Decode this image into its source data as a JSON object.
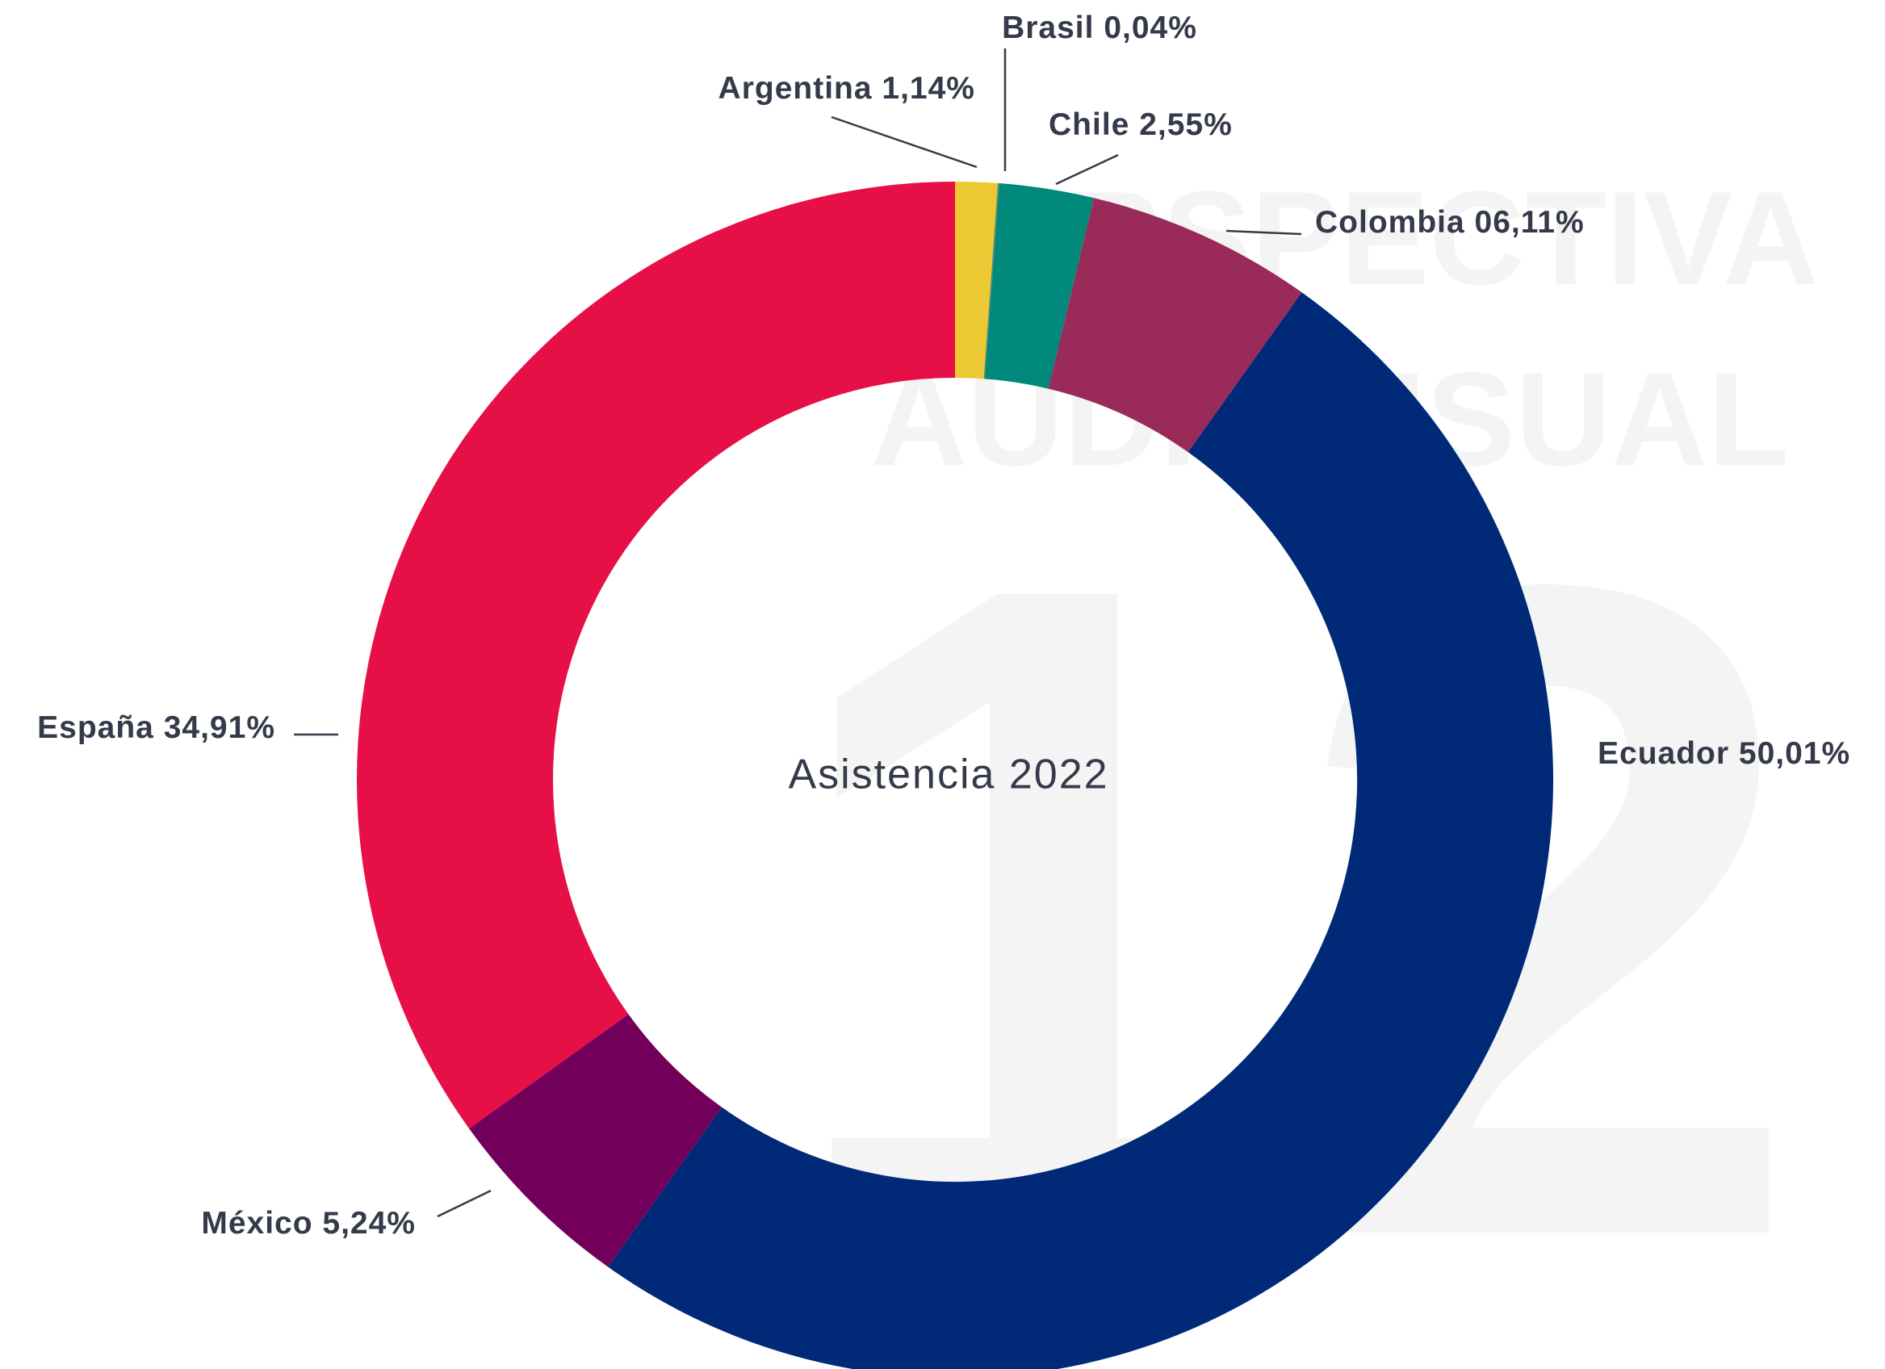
{
  "chart_data": {
    "type": "donut",
    "center_label": "Asistencia 2022",
    "watermark": [
      "PERSPECTIVA",
      "AUDIOVISUAL",
      "12"
    ],
    "categories": [
      "Argentina",
      "Brasil",
      "Chile",
      "Colombia",
      "Ecuador",
      "México",
      "España"
    ],
    "values": [
      1.14,
      0.04,
      2.55,
      6.11,
      50.01,
      5.24,
      34.91
    ],
    "value_labels": [
      "1,14%",
      "0,04%",
      "2,55%",
      "06,11%",
      "50,01%",
      "5,24%",
      "34,91%"
    ],
    "colors": [
      "#ecc832",
      "#5a8a6a",
      "#00897a",
      "#9a2a5a",
      "#002a78",
      "#72005a",
      "#e60f46"
    ]
  }
}
